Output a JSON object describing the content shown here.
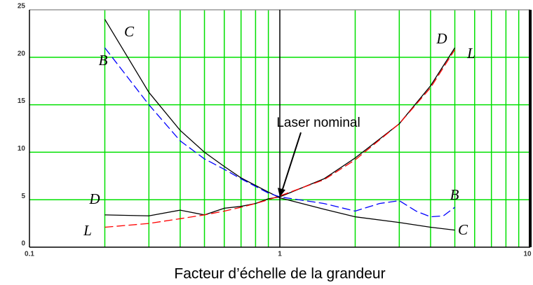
{
  "chart_data": {
    "type": "line",
    "xlabel": "Facteur d’échelle de la grandeur",
    "xscale": "log",
    "xlim": [
      0.1,
      10
    ],
    "xticks": [
      0.1,
      1,
      10
    ],
    "xgrid": [
      0.2,
      0.3,
      0.4,
      0.5,
      0.6,
      0.7,
      0.8,
      0.9,
      2,
      3,
      4,
      5,
      6,
      7,
      8,
      9
    ],
    "ylim": [
      0,
      25
    ],
    "yticks": [
      0,
      5,
      10,
      15,
      20,
      25
    ],
    "grid": true,
    "grid_color": "#00e000",
    "annotation": {
      "text": "Laser nominal",
      "x": 1,
      "y": 5.3
    },
    "series": [
      {
        "name": "C",
        "color": "#000000",
        "style": "solid",
        "x": [
          0.2,
          0.3,
          0.4,
          0.5,
          0.6,
          0.7,
          0.8,
          0.9,
          1,
          1.5,
          2,
          3,
          4,
          5
        ],
        "values": [
          24,
          16.3,
          12.3,
          10,
          8.5,
          7.3,
          6.5,
          5.8,
          5.2,
          4,
          3.2,
          2.6,
          2.1,
          1.8
        ]
      },
      {
        "name": "B",
        "color": "#0000ff",
        "style": "dashed",
        "x": [
          0.2,
          0.3,
          0.4,
          0.5,
          0.6,
          0.7,
          0.8,
          0.9,
          1,
          1.5,
          2,
          2.5,
          3,
          3.5,
          4,
          4.5,
          5
        ],
        "values": [
          21,
          15,
          11.2,
          9.3,
          8.2,
          7.2,
          6.4,
          5.7,
          5.3,
          4.6,
          3.8,
          4.6,
          4.9,
          3.8,
          3.2,
          3.3,
          4.2
        ]
      },
      {
        "name": "D",
        "color": "#000000",
        "style": "solid",
        "x": [
          0.2,
          0.3,
          0.4,
          0.5,
          0.6,
          0.7,
          0.8,
          0.9,
          1,
          1.5,
          2,
          3,
          4,
          5
        ],
        "values": [
          3.4,
          3.3,
          3.9,
          3.4,
          4.1,
          4.3,
          4.6,
          5.1,
          5.3,
          7.2,
          9.4,
          13,
          17,
          21
        ]
      },
      {
        "name": "L",
        "color": "#ff0000",
        "style": "dashed",
        "x": [
          0.2,
          0.3,
          0.4,
          0.5,
          0.6,
          0.7,
          0.8,
          0.9,
          1,
          1.5,
          2,
          3,
          4,
          5
        ],
        "values": [
          2.1,
          2.5,
          3,
          3.4,
          3.8,
          4.2,
          4.6,
          5,
          5.4,
          7.1,
          9.2,
          13,
          16.8,
          20.8
        ]
      }
    ]
  }
}
